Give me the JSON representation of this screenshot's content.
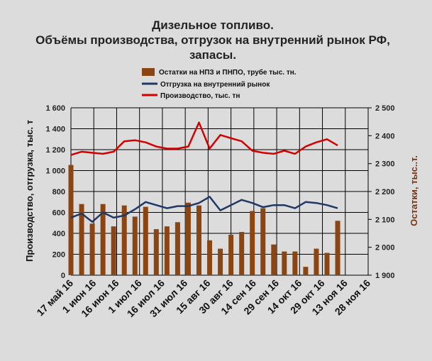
{
  "chart_data": {
    "type": "bar+line",
    "title_lines": [
      "Дизельное топливо.",
      "Объёмы производства, отгрузок на внутренний рынок РФ,",
      "запасы."
    ],
    "ylabel_left": "Производство, отгрузка, тыс. т",
    "ylabel_right": "Остатки, тыс..т.",
    "y_left": {
      "min": 0,
      "max": 1600,
      "ticks": [
        "0",
        "200",
        "400",
        "600",
        "800",
        "1 000",
        "1 200",
        "1 400",
        "1 600"
      ]
    },
    "y_right": {
      "min": 1900,
      "max": 2500,
      "ticks": [
        "1 900",
        "2 000",
        "2 100",
        "2 200",
        "2 300",
        "2 400",
        "2 500"
      ]
    },
    "x_ticks": [
      "17 май 16",
      "1 июн 16",
      "16 июн 16",
      "1 июл 16",
      "16 июл 16",
      "31 июл 16",
      "15 авг 16",
      "30 авг 16",
      "14 сен 16",
      "29 сен 16",
      "14 окт 16",
      "29 окт 16",
      "13 ноя 16",
      "28 ноя 16"
    ],
    "x_range_days": [
      0,
      195
    ],
    "colors": {
      "stock": "#8b4513",
      "shipment": "#1f3864",
      "production": "#d40000",
      "grid": "#000000",
      "right_axis": "#7b3512"
    },
    "legend": [
      {
        "key": "stock",
        "label": "Остатки  на НПЗ  и ПНПО,  трубе  тыс. тн."
      },
      {
        "key": "shipment",
        "label": "Отгрузка на внутренний  рынок"
      },
      {
        "key": "production",
        "label": "Производство,  тыс. тн"
      }
    ],
    "series": [
      {
        "key": "stock",
        "kind": "bar",
        "axis": "right",
        "x_days": [
          0,
          7,
          14,
          21,
          28,
          35,
          42,
          49,
          56,
          63,
          70,
          77,
          84,
          91,
          98,
          105,
          112,
          119,
          126,
          133,
          140,
          147,
          154,
          161,
          168,
          175
        ],
        "values": [
          2295,
          2155,
          2085,
          2155,
          2075,
          2150,
          2110,
          2145,
          2065,
          2075,
          2090,
          2160,
          2150,
          2025,
          1995,
          2045,
          2055,
          2130,
          2140,
          2010,
          1985,
          1985,
          1930,
          1995,
          1980,
          2095
        ]
      },
      {
        "key": "shipment",
        "kind": "line",
        "axis": "left",
        "x_days": [
          0,
          7,
          14,
          21,
          28,
          35,
          42,
          49,
          56,
          63,
          70,
          77,
          84,
          91,
          98,
          105,
          112,
          119,
          126,
          133,
          140,
          147,
          154,
          161,
          168,
          175
        ],
        "values": [
          550,
          590,
          510,
          600,
          550,
          570,
          630,
          700,
          670,
          640,
          660,
          660,
          690,
          750,
          620,
          670,
          720,
          690,
          650,
          670,
          670,
          640,
          700,
          690,
          670,
          640
        ]
      },
      {
        "key": "production",
        "kind": "line",
        "axis": "left",
        "x_days": [
          0,
          7,
          14,
          21,
          28,
          35,
          42,
          49,
          56,
          63,
          70,
          77,
          84,
          91,
          98,
          105,
          112,
          119,
          126,
          133,
          140,
          147,
          154,
          161,
          168,
          175
        ],
        "values": [
          1150,
          1180,
          1170,
          1160,
          1180,
          1280,
          1290,
          1270,
          1230,
          1210,
          1210,
          1230,
          1460,
          1210,
          1340,
          1310,
          1280,
          1190,
          1170,
          1160,
          1190,
          1160,
          1230,
          1270,
          1300,
          1240
        ]
      }
    ]
  }
}
